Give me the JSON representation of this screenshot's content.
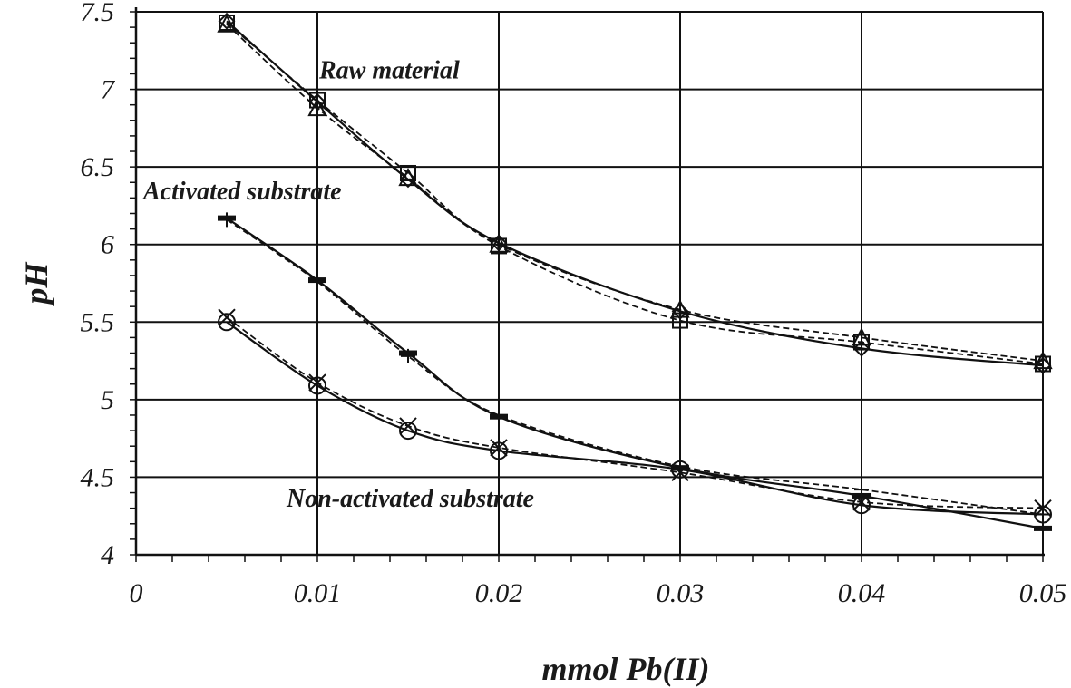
{
  "chart_data": {
    "type": "line",
    "title": "",
    "xlabel": "mmol Pb(II)",
    "ylabel": "pH",
    "xlim": [
      0,
      0.05
    ],
    "ylim": [
      4,
      7.5
    ],
    "x_ticks": [
      "0",
      "0.01",
      "0.02",
      "0.03",
      "0.04",
      "0.05"
    ],
    "y_ticks": [
      "4",
      "4.5",
      "5",
      "5.5",
      "6",
      "6.5",
      "7",
      "7.5"
    ],
    "x_tick_values": [
      0,
      0.01,
      0.02,
      0.03,
      0.04,
      0.05
    ],
    "y_tick_values": [
      4,
      4.5,
      5,
      5.5,
      6,
      6.5,
      7,
      7.5
    ],
    "grid": true,
    "x": [
      0.005,
      0.01,
      0.015,
      0.02,
      0.03,
      0.04,
      0.05
    ],
    "series": [
      {
        "group": "Raw material",
        "marker": "diamond",
        "line": "solid",
        "values": [
          7.44,
          6.92,
          6.42,
          6.01,
          5.57,
          5.33,
          5.22
        ]
      },
      {
        "group": "Raw material",
        "marker": "square",
        "line": "dashed",
        "values": [
          7.43,
          6.93,
          6.46,
          5.99,
          5.51,
          5.37,
          5.23
        ]
      },
      {
        "group": "Raw material",
        "marker": "triangle",
        "line": "dashed",
        "values": [
          7.42,
          6.88,
          6.43,
          6.0,
          5.58,
          5.4,
          5.25
        ]
      },
      {
        "group": "Activated substrate",
        "marker": "dash",
        "line": "solid",
        "values": [
          6.17,
          5.77,
          5.3,
          4.89,
          4.56,
          4.38,
          4.17
        ]
      },
      {
        "group": "Activated substrate",
        "marker": "plus",
        "line": "dashed",
        "values": [
          6.16,
          5.76,
          5.28,
          4.9,
          4.57,
          4.42,
          4.26
        ]
      },
      {
        "group": "Non-activated substrate",
        "marker": "circle",
        "line": "solid",
        "values": [
          5.5,
          5.09,
          4.8,
          4.67,
          4.55,
          4.32,
          4.26
        ]
      },
      {
        "group": "Non-activated substrate",
        "marker": "x",
        "line": "dashed",
        "values": [
          5.53,
          5.11,
          4.83,
          4.69,
          4.53,
          4.34,
          4.3
        ]
      }
    ],
    "annotations": [
      {
        "text": "Raw material",
        "x": 0.0101,
        "y": 7.07
      },
      {
        "text": "Activated substrate",
        "x": 0.0004,
        "y": 6.29
      },
      {
        "text": "Non-activated substrate",
        "x": 0.0083,
        "y": 4.31
      }
    ]
  }
}
